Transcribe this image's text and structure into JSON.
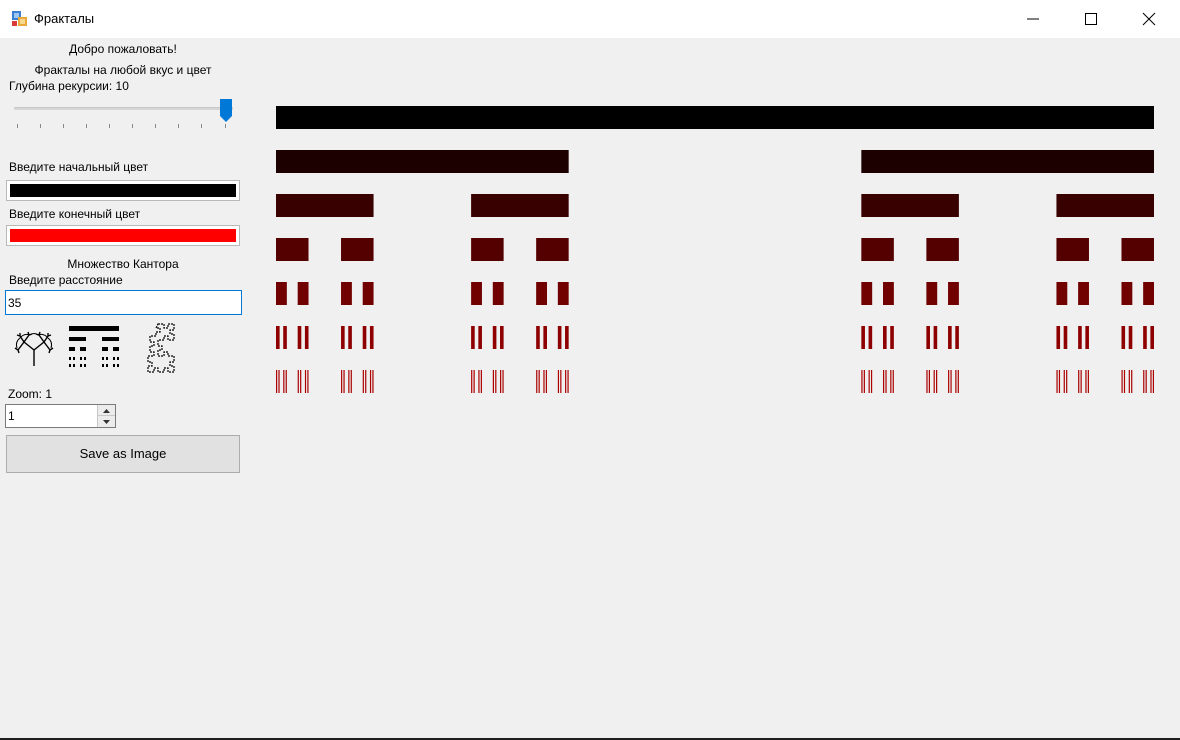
{
  "window": {
    "title": "Фракталы"
  },
  "sidebar": {
    "welcome": "Добро пожаловать!",
    "tagline": "Фракталы на любой вкус и цвет",
    "depth_label": "Глубина рекурсии: 10",
    "depth": {
      "value": 10,
      "min": 1,
      "max": 10
    },
    "start_color_label": "Введите начальный цвет",
    "start_color": "#000000",
    "end_color_label": "Введите конечный цвет",
    "end_color": "#ff0000",
    "fractal_name": "Множество Кантора",
    "distance_label": "Введите расстояние",
    "distance_value": "35",
    "fractal_buttons": [
      "tree-icon",
      "cantor-set-icon",
      "dragon-curve-icon"
    ],
    "zoom_label": "Zoom: 1",
    "zoom_value": "1",
    "save_label": "Save as Image"
  },
  "canvas": {
    "fractal": "cantor-set",
    "depth": 10,
    "distance": 35,
    "start_color": "#000000",
    "end_color": "#ff0000"
  },
  "colors": {
    "accent": "#0078d7",
    "background": "#f0f0f0"
  }
}
